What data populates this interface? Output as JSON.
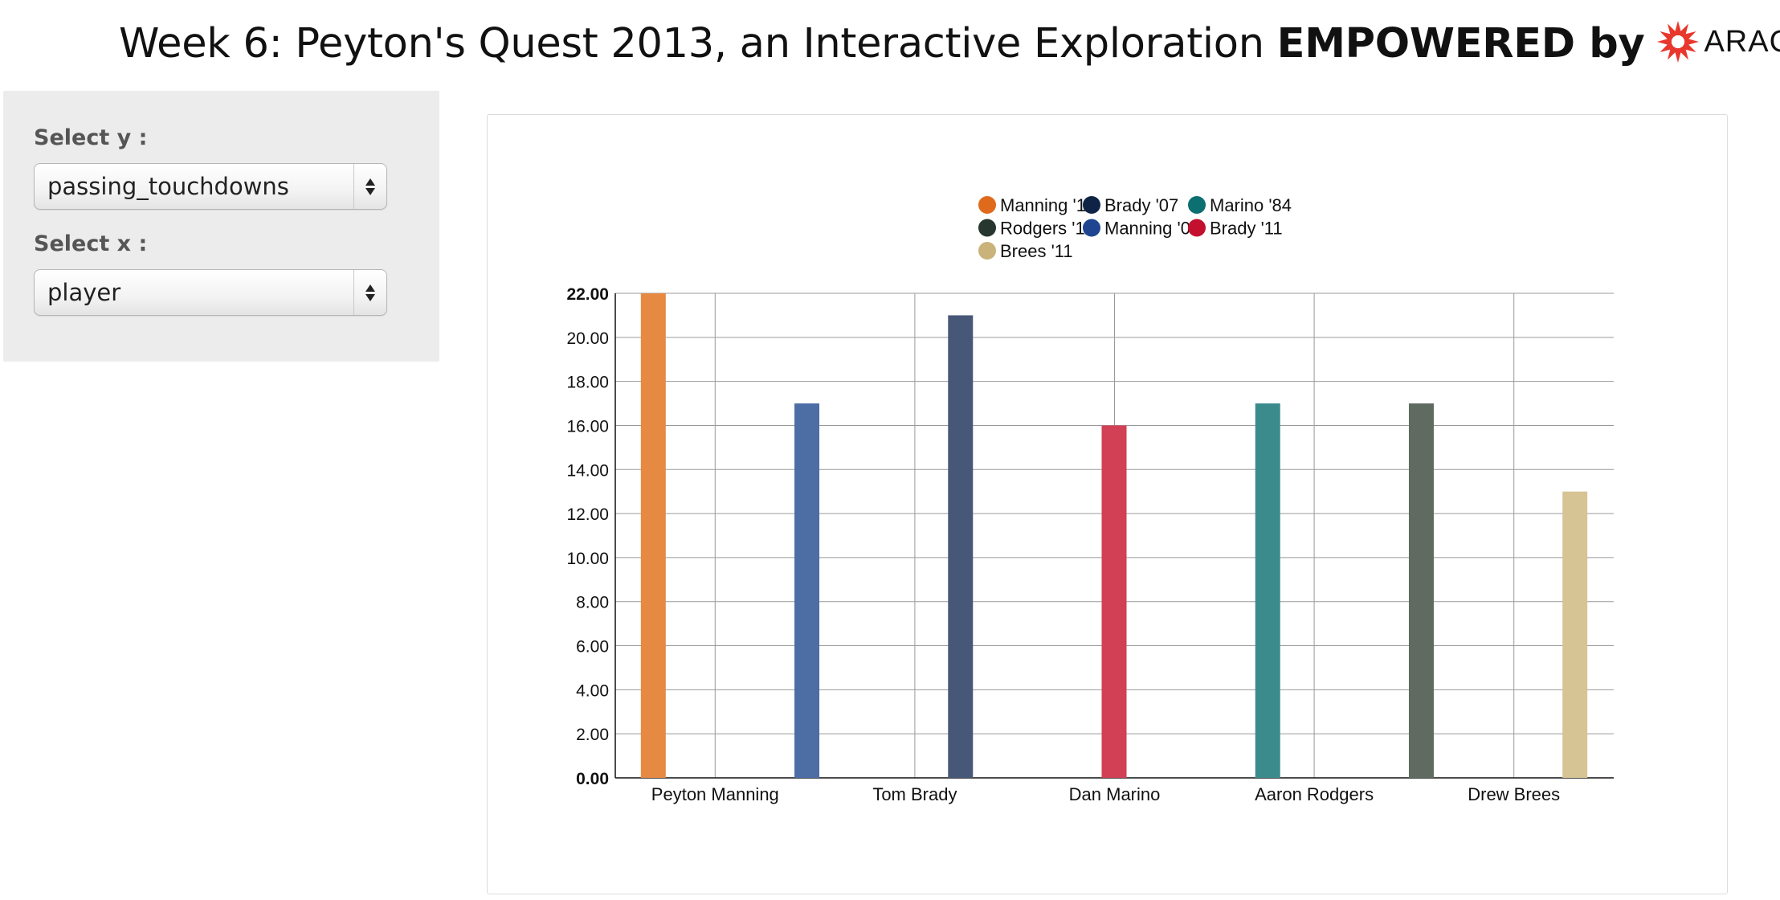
{
  "header": {
    "title_prefix": "Week 6: Peyton's Quest 2013, an Interactive Exploration",
    "title_bold": "EMPOWERED by",
    "brand_name": "ARAGORN",
    "brand_color": "#e8372c"
  },
  "controls": {
    "y_label": "Select y :",
    "y_value": "passing_touchdowns",
    "x_label": "Select x :",
    "x_value": "player"
  },
  "chart_data": {
    "type": "bar",
    "title": "",
    "xlabel": "",
    "ylabel": "",
    "categories": [
      "Peyton Manning",
      "Tom Brady",
      "Dan Marino",
      "Aaron Rodgers",
      "Drew Brees"
    ],
    "ylim": [
      0,
      22
    ],
    "yticks": [
      "0.00",
      "2.00",
      "4.00",
      "6.00",
      "8.00",
      "10.00",
      "12.00",
      "14.00",
      "16.00",
      "18.00",
      "20.00",
      "22.00"
    ],
    "grid": true,
    "legend_position": "top-right",
    "series": [
      {
        "name": "Manning '13",
        "color": "#e06a1b",
        "bar_color": "#e68943",
        "category": "Peyton Manning",
        "value": 22
      },
      {
        "name": "Manning '04",
        "color": "#1f4590",
        "bar_color": "#4d6da5",
        "category": "Peyton Manning",
        "value": 17
      },
      {
        "name": "Brady '07",
        "color": "#0f2346",
        "bar_color": "#475778",
        "category": "Tom Brady",
        "value": 21
      },
      {
        "name": "Brady '11",
        "color": "#c3102e",
        "bar_color": "#d14054",
        "category": "Tom Brady",
        "value": 16
      },
      {
        "name": "Marino '84",
        "color": "#0c6f71",
        "bar_color": "#3b8b8d",
        "category": "Dan Marino",
        "value": 17
      },
      {
        "name": "Rodgers '11",
        "color": "#27362e",
        "bar_color": "#5f6a61",
        "category": "Aaron Rodgers",
        "value": 17
      },
      {
        "name": "Brees '11",
        "color": "#c9b37a",
        "bar_color": "#d7c495",
        "category": "Drew Brees",
        "value": 13
      }
    ],
    "legend_order": [
      "Manning '13",
      "Brady '07",
      "Marino '84",
      "Rodgers '11",
      "Manning '04",
      "Brady '11",
      "Brees '11"
    ]
  }
}
